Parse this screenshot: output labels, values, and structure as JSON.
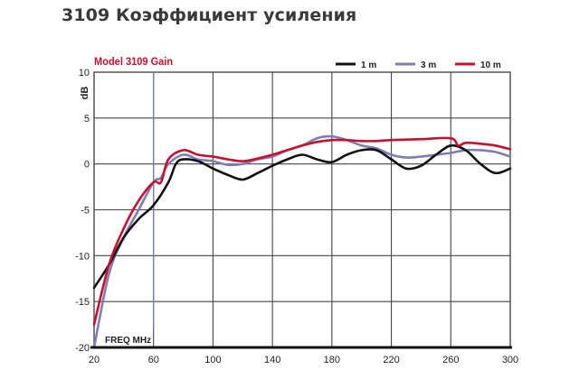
{
  "page": {
    "title": "3109 Коэффициент усиления"
  },
  "chart_data": {
    "type": "line",
    "title": "Model 3109 Gain",
    "xlabel": "FREQ MHz",
    "ylabel": "dB",
    "xlim": [
      20,
      300
    ],
    "ylim": [
      -20,
      10
    ],
    "xticks": [
      20,
      60,
      100,
      140,
      180,
      220,
      260,
      300
    ],
    "yticks": [
      10,
      5,
      0,
      -5,
      -10,
      -15,
      -20
    ],
    "grid": true,
    "legend_position": "top-right",
    "series": [
      {
        "name": "1 m",
        "color": "#111111",
        "x": [
          20,
          30,
          40,
          50,
          60,
          70,
          75,
          80,
          90,
          100,
          110,
          120,
          130,
          140,
          150,
          160,
          170,
          180,
          190,
          200,
          210,
          220,
          230,
          240,
          250,
          260,
          270,
          280,
          290,
          300
        ],
        "values": [
          -13.5,
          -11,
          -8,
          -6,
          -4.5,
          -2,
          0,
          0.5,
          0.3,
          -0.5,
          -1.2,
          -1.7,
          -1,
          -0.2,
          0.5,
          1,
          0.5,
          0.2,
          1,
          1.5,
          1.5,
          0.5,
          -0.5,
          -0.2,
          1,
          2,
          1.5,
          0,
          -1,
          -0.5
        ]
      },
      {
        "name": "3 m",
        "color": "#7b7fb5",
        "x": [
          20,
          30,
          40,
          50,
          60,
          65,
          70,
          80,
          90,
          100,
          110,
          120,
          130,
          140,
          150,
          160,
          170,
          180,
          190,
          200,
          210,
          220,
          230,
          240,
          250,
          260,
          270,
          280,
          290,
          300
        ],
        "values": [
          -20,
          -12,
          -8,
          -5,
          -2,
          -1.5,
          0,
          1,
          0.5,
          0.3,
          -0.1,
          0,
          0.5,
          0.8,
          1.5,
          2,
          2.8,
          3,
          2.6,
          2,
          1.7,
          1,
          0.7,
          0.8,
          1,
          1.2,
          1.5,
          1.5,
          1.3,
          0.8
        ]
      },
      {
        "name": "10 m",
        "color": "#c8102e",
        "x": [
          20,
          30,
          40,
          50,
          60,
          65,
          70,
          80,
          90,
          100,
          110,
          120,
          130,
          140,
          150,
          160,
          170,
          180,
          190,
          200,
          210,
          220,
          240,
          260,
          265,
          270,
          280,
          290,
          300
        ],
        "values": [
          -17.5,
          -11,
          -7,
          -4,
          -2,
          -2,
          0.5,
          1.5,
          1,
          0.8,
          0.5,
          0.3,
          0.6,
          1,
          1.5,
          2,
          2.4,
          2.6,
          2.6,
          2.5,
          2.5,
          2.6,
          2.7,
          2.8,
          2.0,
          2.3,
          2.2,
          2,
          1.6
        ]
      }
    ],
    "annotations": [
      {
        "type": "vertical-line",
        "x": 60,
        "from_y": -18,
        "to_y": 10,
        "color": "#7b7fb5"
      }
    ]
  }
}
